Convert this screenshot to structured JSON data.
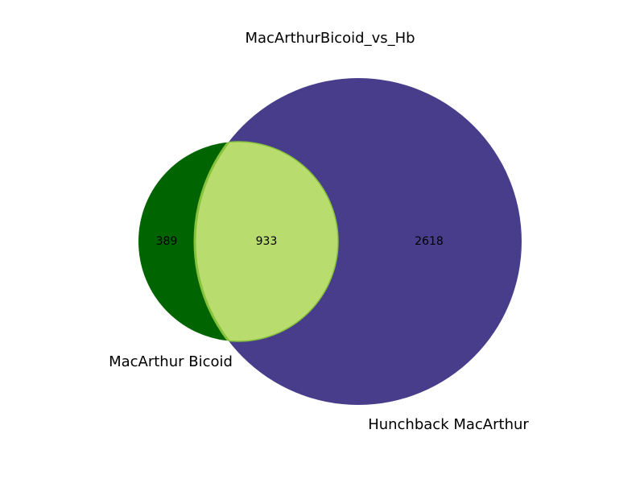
{
  "title": "MacArthurBicoid_vs_Hb",
  "chart_data": {
    "type": "venn",
    "title": "MacArthurBicoid_vs_Hb",
    "sets": [
      {
        "name": "MacArthur Bicoid",
        "color": "#006400"
      },
      {
        "name": "Hunchback MacArthur",
        "color": "#483d8b"
      }
    ],
    "regions": {
      "bicoid_only": 389,
      "intersection": 933,
      "hunchback_only": 2618
    },
    "intersection_color": "#b8dc6e",
    "intersection_edge_color": "#86c23a"
  }
}
